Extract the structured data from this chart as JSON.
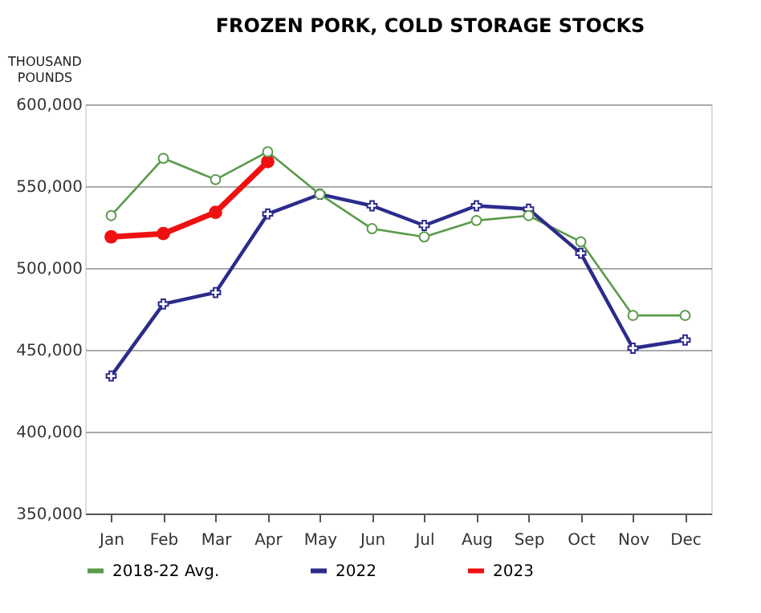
{
  "chart_data": {
    "type": "line",
    "title": "FROZEN PORK, COLD STORAGE STOCKS",
    "ylabel": "THOUSAND POUNDS",
    "categories": [
      "Jan",
      "Feb",
      "Mar",
      "Apr",
      "May",
      "Jun",
      "Jul",
      "Aug",
      "Sep",
      "Oct",
      "Nov",
      "Dec"
    ],
    "series": [
      {
        "name": "2018-22 Avg.",
        "color": "#5a9a4a",
        "marker": "circle",
        "values": [
          532000,
          567000,
          554000,
          571000,
          545000,
          524000,
          519000,
          529000,
          532000,
          516000,
          471000,
          471000
        ]
      },
      {
        "name": "2022",
        "color": "#2b2b8c",
        "marker": "cross",
        "values": [
          434000,
          478000,
          485000,
          533000,
          545000,
          538000,
          526000,
          538000,
          536000,
          509000,
          451000,
          456000
        ]
      },
      {
        "name": "2023",
        "color": "#ee1111",
        "marker": "circle",
        "values": [
          519000,
          521000,
          534000,
          565000,
          null,
          null,
          null,
          null,
          null,
          null,
          null,
          null
        ]
      }
    ],
    "ylim": [
      350000,
      600000
    ],
    "yticks": [
      {
        "value": 350000,
        "label": "350,000"
      },
      {
        "value": 400000,
        "label": "400,000"
      },
      {
        "value": 450000,
        "label": "450,000"
      },
      {
        "value": 500000,
        "label": "500,000"
      },
      {
        "value": 550000,
        "label": "550,000"
      },
      {
        "value": 600000,
        "label": "600,000"
      }
    ],
    "grid": "y",
    "legend": "bottom"
  }
}
